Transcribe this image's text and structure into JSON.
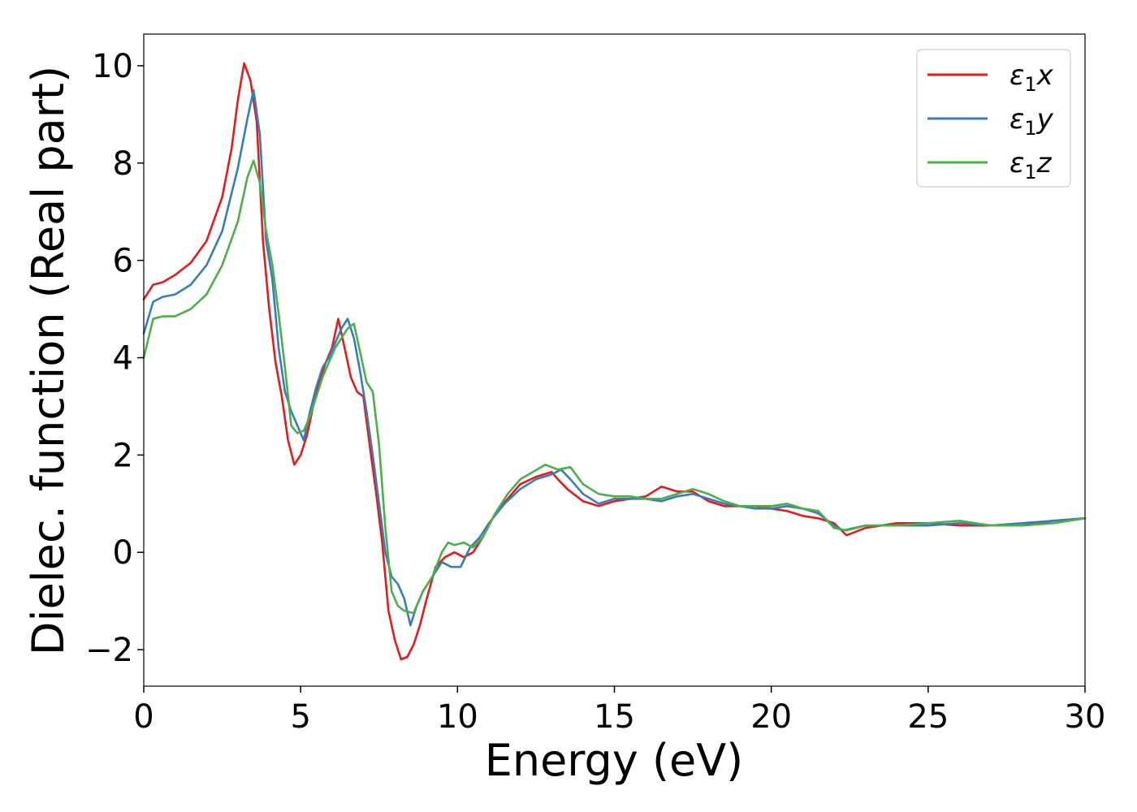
{
  "chart_data": {
    "type": "line",
    "xlabel": "Energy (eV)",
    "ylabel": "Dielec. function (Real part)",
    "xlim": [
      0,
      30
    ],
    "ylim": [
      -2.75,
      10.65
    ],
    "xticks": [
      0,
      5,
      10,
      15,
      20,
      25,
      30
    ],
    "xtick_labels": [
      "0",
      "5",
      "10",
      "15",
      "20",
      "25",
      "30"
    ],
    "yticks": [
      -2,
      0,
      2,
      4,
      6,
      8,
      10
    ],
    "ytick_labels": [
      "−2",
      "0",
      "2",
      "4",
      "6",
      "8",
      "10"
    ],
    "grid": false,
    "legend_position": "top-right",
    "series": [
      {
        "name": "ε₁x",
        "legend_sub": "1",
        "legend_suffix": "x",
        "color": "#e41a1c",
        "x": [
          0,
          0.3,
          0.6,
          1.0,
          1.5,
          2.0,
          2.5,
          2.8,
          3.0,
          3.2,
          3.4,
          3.6,
          3.8,
          4.0,
          4.2,
          4.4,
          4.6,
          4.8,
          5.0,
          5.2,
          5.4,
          5.6,
          5.8,
          6.0,
          6.2,
          6.4,
          6.6,
          6.8,
          7.0,
          7.2,
          7.4,
          7.6,
          7.8,
          8.0,
          8.2,
          8.4,
          8.6,
          8.8,
          9.0,
          9.3,
          9.6,
          9.9,
          10.2,
          10.5,
          10.8,
          11.2,
          11.6,
          12.0,
          12.5,
          13.0,
          13.2,
          13.5,
          14.0,
          14.5,
          15.0,
          15.5,
          16.0,
          16.5,
          17.0,
          17.5,
          18.0,
          18.5,
          19.0,
          19.5,
          20.0,
          20.5,
          21.0,
          21.5,
          22.0,
          22.4,
          23.0,
          24.0,
          25.0,
          26.0,
          27.0,
          28.0,
          29.0,
          30.0
        ],
        "y": [
          5.2,
          5.5,
          5.55,
          5.7,
          5.95,
          6.4,
          7.3,
          8.3,
          9.3,
          10.05,
          9.7,
          8.85,
          6.4,
          5.0,
          3.9,
          3.2,
          2.3,
          1.8,
          2.0,
          2.4,
          3.0,
          3.5,
          3.9,
          4.2,
          4.8,
          4.2,
          3.6,
          3.3,
          3.2,
          2.2,
          1.25,
          0.2,
          -1.2,
          -1.8,
          -2.2,
          -2.15,
          -1.9,
          -1.5,
          -1.0,
          -0.3,
          -0.1,
          0.0,
          -0.1,
          0.0,
          0.3,
          0.8,
          1.1,
          1.4,
          1.55,
          1.65,
          1.5,
          1.3,
          1.05,
          0.95,
          1.05,
          1.1,
          1.15,
          1.35,
          1.25,
          1.25,
          1.05,
          0.95,
          0.95,
          0.95,
          0.9,
          0.85,
          0.75,
          0.7,
          0.6,
          0.35,
          0.5,
          0.6,
          0.6,
          0.55,
          0.55,
          0.55,
          0.65,
          0.7
        ]
      },
      {
        "name": "ε₁y",
        "legend_sub": "1",
        "legend_suffix": "y",
        "color": "#377eb8",
        "x": [
          0,
          0.3,
          0.6,
          1.0,
          1.5,
          2.0,
          2.5,
          3.0,
          3.3,
          3.5,
          3.7,
          3.9,
          4.1,
          4.3,
          4.5,
          4.7,
          4.9,
          5.1,
          5.3,
          5.5,
          5.7,
          5.9,
          6.1,
          6.3,
          6.5,
          6.7,
          6.9,
          7.1,
          7.3,
          7.5,
          7.7,
          7.9,
          8.1,
          8.3,
          8.5,
          8.7,
          8.9,
          9.2,
          9.5,
          9.8,
          10.1,
          10.4,
          10.7,
          11.0,
          11.5,
          12.0,
          12.5,
          13.0,
          13.3,
          13.6,
          14.0,
          14.5,
          15.0,
          15.5,
          16.0,
          16.5,
          17.0,
          17.5,
          18.0,
          18.5,
          19.0,
          19.5,
          20.0,
          20.5,
          21.0,
          21.5,
          22.0,
          22.3,
          23.0,
          24.0,
          25.0,
          26.0,
          27.0,
          28.0,
          29.0,
          30.0
        ],
        "y": [
          4.5,
          5.15,
          5.25,
          5.3,
          5.5,
          5.9,
          6.6,
          7.9,
          8.9,
          9.5,
          8.6,
          6.4,
          5.6,
          4.2,
          3.3,
          2.9,
          2.6,
          2.3,
          2.9,
          3.4,
          3.8,
          4.0,
          4.3,
          4.6,
          4.8,
          4.4,
          3.7,
          2.9,
          2.0,
          1.0,
          0.0,
          -0.5,
          -0.65,
          -0.95,
          -1.5,
          -1.1,
          -0.8,
          -0.5,
          -0.2,
          -0.3,
          -0.3,
          0.1,
          0.3,
          0.6,
          1.0,
          1.3,
          1.5,
          1.6,
          1.7,
          1.5,
          1.2,
          1.0,
          1.1,
          1.1,
          1.1,
          1.05,
          1.15,
          1.2,
          1.1,
          1.0,
          0.95,
          0.9,
          0.9,
          0.95,
          0.9,
          0.8,
          0.55,
          0.45,
          0.55,
          0.55,
          0.55,
          0.6,
          0.55,
          0.6,
          0.65,
          0.7
        ]
      },
      {
        "name": "ε₁z",
        "legend_sub": "1",
        "legend_suffix": "z",
        "color": "#4daf4a",
        "x": [
          0,
          0.3,
          0.6,
          1.0,
          1.5,
          2.0,
          2.5,
          3.0,
          3.3,
          3.5,
          3.7,
          3.9,
          4.1,
          4.3,
          4.5,
          4.7,
          4.9,
          5.1,
          5.3,
          5.5,
          5.7,
          5.9,
          6.1,
          6.3,
          6.5,
          6.7,
          6.9,
          7.1,
          7.3,
          7.5,
          7.7,
          7.9,
          8.1,
          8.3,
          8.6,
          8.9,
          9.2,
          9.5,
          9.7,
          9.9,
          10.2,
          10.5,
          10.8,
          11.2,
          11.6,
          12.0,
          12.4,
          12.8,
          13.2,
          13.6,
          14.0,
          14.5,
          15.0,
          15.5,
          16.0,
          16.5,
          17.0,
          17.5,
          18.0,
          18.5,
          19.0,
          19.5,
          20.0,
          20.5,
          21.0,
          21.5,
          22.0,
          22.4,
          23.0,
          24.0,
          25.0,
          26.0,
          27.0,
          28.0,
          29.0,
          30.0
        ],
        "y": [
          4.0,
          4.8,
          4.85,
          4.85,
          5.0,
          5.3,
          5.9,
          6.8,
          7.7,
          8.05,
          7.6,
          6.6,
          5.9,
          4.9,
          3.8,
          2.6,
          2.45,
          2.5,
          2.8,
          3.2,
          3.6,
          3.9,
          4.2,
          4.4,
          4.6,
          4.7,
          4.1,
          3.5,
          3.3,
          2.2,
          0.5,
          -0.8,
          -1.1,
          -1.2,
          -1.25,
          -0.8,
          -0.5,
          0.0,
          0.2,
          0.15,
          0.2,
          0.1,
          0.3,
          0.8,
          1.2,
          1.5,
          1.65,
          1.8,
          1.7,
          1.75,
          1.4,
          1.2,
          1.15,
          1.15,
          1.1,
          1.1,
          1.2,
          1.3,
          1.2,
          1.05,
          0.95,
          0.95,
          0.95,
          1.0,
          0.9,
          0.85,
          0.5,
          0.45,
          0.55,
          0.55,
          0.6,
          0.65,
          0.55,
          0.55,
          0.6,
          0.7
        ]
      }
    ]
  }
}
